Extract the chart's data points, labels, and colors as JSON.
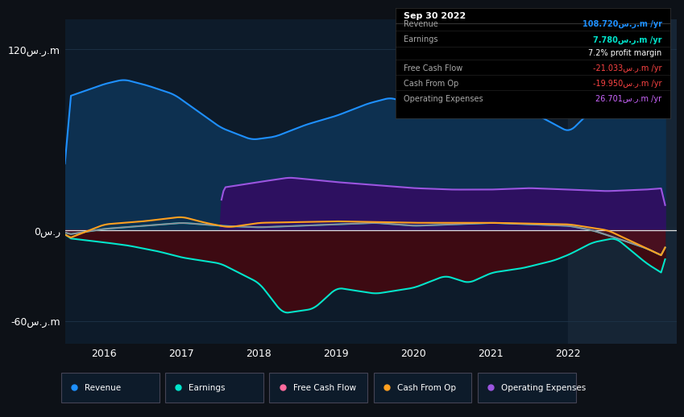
{
  "bg_color": "#0d1117",
  "plot_bg_color": "#0d1b2a",
  "highlight_bg_color": "#162535",
  "grid_color": "#1e3348",
  "zero_line_color": "#e0e0e0",
  "xlim": [
    2015.5,
    2023.4
  ],
  "ylim": [
    -75,
    140
  ],
  "yticks": [
    -60,
    0,
    120
  ],
  "ytick_labels": [
    "-60س.ر.m",
    "0س.ر",
    "120س.ر.m"
  ],
  "xticks": [
    2016,
    2017,
    2018,
    2019,
    2020,
    2021,
    2022
  ],
  "highlight_start": 2022.0,
  "highlight_end": 2023.4,
  "revenue_color": "#1e90ff",
  "revenue_fill": "#0d3050",
  "earnings_color": "#00e5cc",
  "earnings_fill": "#550a1a",
  "fcf_fill": "#3d0a12",
  "cashfromop_color": "#ffa020",
  "fcf_color": "#ff6b9d",
  "opex_color": "#9b55e0",
  "opex_fill": "#2d1060",
  "legend_items": [
    {
      "label": "Revenue",
      "color": "#1e90ff"
    },
    {
      "label": "Earnings",
      "color": "#00e5cc"
    },
    {
      "label": "Free Cash Flow",
      "color": "#ff6b9d"
    },
    {
      "label": "Cash From Op",
      "color": "#ffa020"
    },
    {
      "label": "Operating Expenses",
      "color": "#9b55e0"
    }
  ],
  "info_box": {
    "date": "Sep 30 2022",
    "rows": [
      {
        "label": "Revenue",
        "value": "108.720س.ر.m /yr",
        "value_color": "#1e90ff"
      },
      {
        "label": "Earnings",
        "value": "7.780س.ر.m /yr",
        "value_color": "#00e5cc"
      },
      {
        "label": "",
        "value": "7.2% profit margin",
        "value_color": "#ffffff"
      },
      {
        "label": "Free Cash Flow",
        "value": "-21.033س.ر.m /yr",
        "value_color": "#ff4444"
      },
      {
        "label": "Cash From Op",
        "value": "-19.950س.ر.m /yr",
        "value_color": "#ff4444"
      },
      {
        "label": "Operating Expenses",
        "value": "26.701س.ر.m /yr",
        "value_color": "#cc66ff"
      }
    ]
  },
  "revenue_x": [
    2015.5,
    2016.0,
    2016.25,
    2016.55,
    2016.9,
    2017.5,
    2017.9,
    2018.2,
    2018.6,
    2019.0,
    2019.4,
    2019.7,
    2020.0,
    2020.3,
    2020.6,
    2020.9,
    2021.2,
    2021.6,
    2022.0,
    2022.3,
    2022.7,
    2023.0,
    2023.25
  ],
  "revenue_y": [
    88,
    97,
    100,
    96,
    90,
    68,
    60,
    62,
    70,
    76,
    84,
    88,
    82,
    86,
    82,
    84,
    82,
    76,
    65,
    80,
    105,
    120,
    125
  ],
  "earnings_x": [
    2015.5,
    2016.0,
    2016.5,
    2017.0,
    2017.5,
    2018.0,
    2018.5,
    2019.0,
    2019.5,
    2020.0,
    2020.5,
    2021.0,
    2021.5,
    2022.0,
    2022.3,
    2022.6,
    2023.0,
    2023.25
  ],
  "earnings_y": [
    -3,
    1,
    3,
    5,
    3,
    2,
    3,
    4,
    5,
    3,
    4,
    5,
    4,
    3,
    0,
    -5,
    -12,
    -18
  ],
  "fcf_x": [
    2015.5,
    2016.0,
    2016.3,
    2016.7,
    2017.0,
    2017.5,
    2018.0,
    2018.3,
    2018.7,
    2019.0,
    2019.5,
    2020.0,
    2020.4,
    2020.7,
    2021.0,
    2021.4,
    2021.8,
    2022.0,
    2022.3,
    2022.6,
    2023.0,
    2023.25
  ],
  "fcf_y": [
    -5,
    -8,
    -10,
    -14,
    -18,
    -22,
    -35,
    -55,
    -52,
    -38,
    -42,
    -38,
    -30,
    -35,
    -28,
    -25,
    -20,
    -16,
    -8,
    -5,
    -22,
    -30
  ],
  "cashfromop_x": [
    2015.5,
    2016.0,
    2016.5,
    2017.0,
    2017.3,
    2017.6,
    2018.0,
    2019.0,
    2020.0,
    2021.0,
    2022.0,
    2022.5,
    2023.0,
    2023.25
  ],
  "cashfromop_y": [
    -6,
    4,
    6,
    9,
    5,
    2,
    5,
    6,
    5,
    5,
    4,
    0,
    -12,
    -18
  ],
  "opex_x": [
    2015.5,
    2017.49,
    2017.5,
    2018.0,
    2018.4,
    2019.0,
    2019.5,
    2020.0,
    2020.5,
    2021.0,
    2021.5,
    2022.0,
    2022.5,
    2023.0,
    2023.25
  ],
  "opex_y": [
    0,
    0,
    28,
    32,
    35,
    32,
    30,
    28,
    27,
    27,
    28,
    27,
    26,
    27,
    28
  ]
}
